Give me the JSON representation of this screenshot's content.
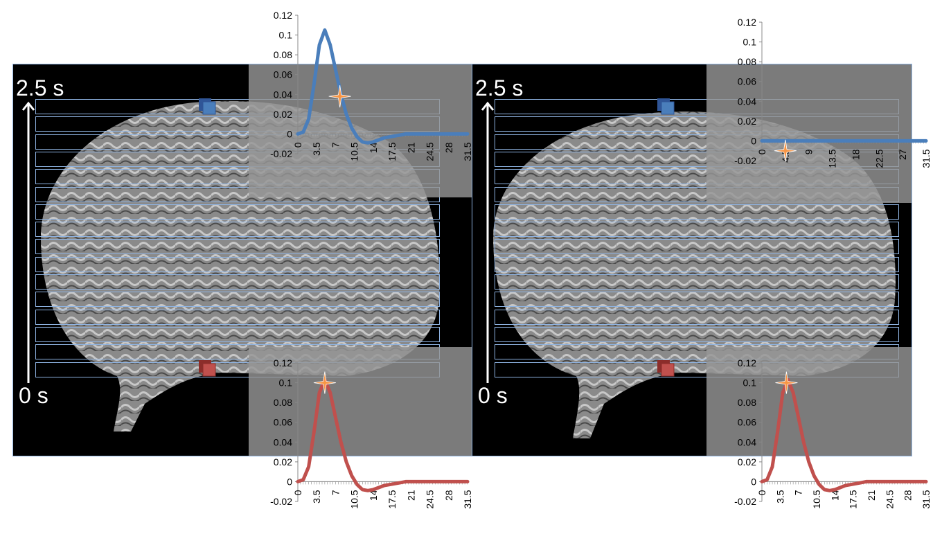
{
  "panels": [
    {
      "name": "left",
      "time_top_label": "2.5 s",
      "time_bottom_label": "0 s"
    },
    {
      "name": "right",
      "time_top_label": "2.5 s",
      "time_bottom_label": "0 s"
    }
  ],
  "colors": {
    "top_curve": "#4a7ebb",
    "bottom_curve": "#c0504d",
    "marker": "#f79646",
    "slice_outline": "#8fb4e3"
  },
  "chart_data": [
    {
      "id": "left-top",
      "type": "line",
      "y_ticks": [
        "0.12",
        "0.1",
        "0.08",
        "0.06",
        "0.04",
        "0.02",
        "0",
        "-0.02"
      ],
      "x_ticks": [
        "0",
        "3.5",
        "7",
        "10.5",
        "14",
        "17.5",
        "21",
        "24.5",
        "28",
        "31.5"
      ],
      "ylim": [
        -0.02,
        0.12
      ],
      "xlim": [
        0,
        31.5
      ],
      "series": [
        {
          "color": "#4a7ebb",
          "x": [
            0,
            1,
            2,
            3,
            4,
            5,
            6,
            7,
            8,
            9,
            10,
            11,
            12,
            13,
            14,
            15,
            16,
            17,
            18,
            19,
            20,
            22,
            24,
            26,
            28,
            31.5
          ],
          "y": [
            0,
            0.002,
            0.015,
            0.05,
            0.09,
            0.105,
            0.09,
            0.065,
            0.04,
            0.02,
            0.006,
            -0.003,
            -0.008,
            -0.009,
            -0.008,
            -0.006,
            -0.004,
            -0.003,
            -0.002,
            -0.001,
            0,
            0,
            0,
            0,
            0,
            0
          ]
        }
      ],
      "marker": {
        "x": 7.8,
        "y": 0.038
      }
    },
    {
      "id": "right-top",
      "type": "line",
      "y_ticks": [
        "0.12",
        "0.1",
        "0.08",
        "0.06",
        "0.04",
        "0.02",
        "0",
        "-0.02"
      ],
      "x_ticks": [
        "0",
        "4.5",
        "9",
        "13.5",
        "18",
        "22.5",
        "27",
        "31.5"
      ],
      "ylim": [
        -0.02,
        0.12
      ],
      "xlim": [
        0,
        31.5
      ],
      "series": [
        {
          "color": "#4a7ebb",
          "x": [
            0,
            31.5
          ],
          "y": [
            0,
            0
          ]
        }
      ],
      "marker": {
        "x": 4.5,
        "y": -0.01
      }
    },
    {
      "id": "left-bottom",
      "type": "line",
      "y_ticks": [
        "0.12",
        "0.1",
        "0.08",
        "0.06",
        "0.04",
        "0.02",
        "0",
        "-0.02"
      ],
      "x_ticks": [
        "0",
        "3.5",
        "7",
        "10.5",
        "14",
        "17.5",
        "21",
        "24.5",
        "28",
        "31.5"
      ],
      "ylim": [
        -0.02,
        0.12
      ],
      "xlim": [
        0,
        31.5
      ],
      "series": [
        {
          "color": "#c0504d",
          "x": [
            0,
            1,
            2,
            3,
            4,
            5,
            6,
            7,
            8,
            9,
            10,
            11,
            12,
            13,
            14,
            15,
            16,
            17,
            18,
            19,
            20,
            22,
            24,
            26,
            28,
            31.5
          ],
          "y": [
            0,
            0.002,
            0.015,
            0.05,
            0.09,
            0.103,
            0.09,
            0.065,
            0.04,
            0.02,
            0.006,
            -0.003,
            -0.008,
            -0.009,
            -0.008,
            -0.006,
            -0.004,
            -0.003,
            -0.002,
            -0.001,
            0,
            0,
            0,
            0,
            0,
            0
          ]
        }
      ],
      "marker": {
        "x": 5,
        "y": 0.1
      }
    },
    {
      "id": "right-bottom",
      "type": "line",
      "y_ticks": [
        "0.12",
        "0.1",
        "0.08",
        "0.06",
        "0.04",
        "0.02",
        "0",
        "-0.02"
      ],
      "x_ticks": [
        "0",
        "3.5",
        "7",
        "10.5",
        "14",
        "17.5",
        "21",
        "24.5",
        "28",
        "31.5"
      ],
      "ylim": [
        -0.02,
        0.12
      ],
      "xlim": [
        0,
        31.5
      ],
      "series": [
        {
          "color": "#c0504d",
          "x": [
            0,
            1,
            2,
            3,
            4,
            5,
            6,
            7,
            8,
            9,
            10,
            11,
            12,
            13,
            14,
            15,
            16,
            17,
            18,
            19,
            20,
            22,
            24,
            26,
            28,
            31.5
          ],
          "y": [
            0,
            0.002,
            0.015,
            0.05,
            0.09,
            0.103,
            0.09,
            0.065,
            0.04,
            0.02,
            0.006,
            -0.003,
            -0.008,
            -0.009,
            -0.008,
            -0.006,
            -0.004,
            -0.003,
            -0.002,
            -0.001,
            0,
            0,
            0,
            0,
            0,
            0
          ]
        }
      ],
      "marker": {
        "x": 4.7,
        "y": 0.1
      }
    }
  ]
}
